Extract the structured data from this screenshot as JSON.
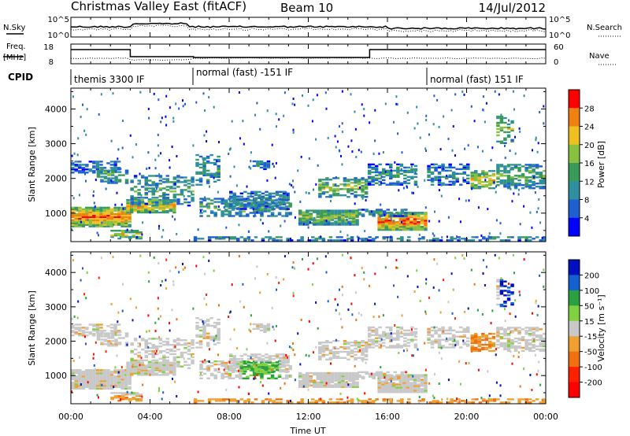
{
  "header": {
    "station": "Christmas Valley East (fitACF)",
    "beam": "Beam 10",
    "date": "14/Jul/2012"
  },
  "panels": {
    "noise": {
      "left_label": "N.Sky",
      "right_label": "N.Search",
      "left_ticks": [
        "10^5",
        "10^0"
      ],
      "right_ticks": [
        "10^5",
        "10^0"
      ]
    },
    "freq": {
      "left_label_1": "Freq.",
      "left_label_2": "[MHz]",
      "right_label": "Nave",
      "left_ticks": [
        "18",
        "8"
      ],
      "right_ticks": [
        "60",
        "0"
      ]
    },
    "cpid": {
      "label": "CPID",
      "modes": [
        {
          "name": "themis 3300 IF",
          "start_hour": 0
        },
        {
          "name": "normal (fast) -151 IF",
          "start_hour": 6.2
        },
        {
          "name": "normal (fast) 151 IF",
          "start_hour": 18.0
        }
      ]
    }
  },
  "chart_data": [
    {
      "type": "heatmap",
      "name": "Power",
      "ylabel": "Slant Range [km]",
      "ylim": [
        180,
        4600
      ],
      "yticks": [
        "1000",
        "2000",
        "3000",
        "4000"
      ],
      "colorbar": {
        "label": "Power [dB]",
        "ticks": [
          "4",
          "8",
          "12",
          "16",
          "20",
          "24",
          "28"
        ],
        "colors": [
          "#0000ff",
          "#1f5fd0",
          "#2e8fa0",
          "#3a9a5a",
          "#88c040",
          "#f0c020",
          "#f08010",
          "#ff0000"
        ]
      }
    },
    {
      "type": "heatmap",
      "name": "Velocity",
      "ylabel": "Slant Range [km]",
      "ylim": [
        180,
        4600
      ],
      "yticks": [
        "1000",
        "2000",
        "3000",
        "4000"
      ],
      "colorbar": {
        "label": "Velocity [m s⁻¹]",
        "ticks": [
          "200",
          "100",
          "50",
          "15",
          "-15",
          "-50",
          "-100",
          "-200"
        ],
        "colors": [
          "#0010c0",
          "#1560d0",
          "#2aa040",
          "#80d040",
          "#c8c8c8",
          "#f0a030",
          "#f07010",
          "#ff2000",
          "#ff0000"
        ]
      }
    }
  ],
  "xaxis": {
    "label": "Time UT",
    "ticks": [
      "00:00",
      "04:00",
      "08:00",
      "12:00",
      "16:00",
      "20:00",
      "00:00"
    ],
    "range_hours": [
      0,
      24
    ]
  }
}
